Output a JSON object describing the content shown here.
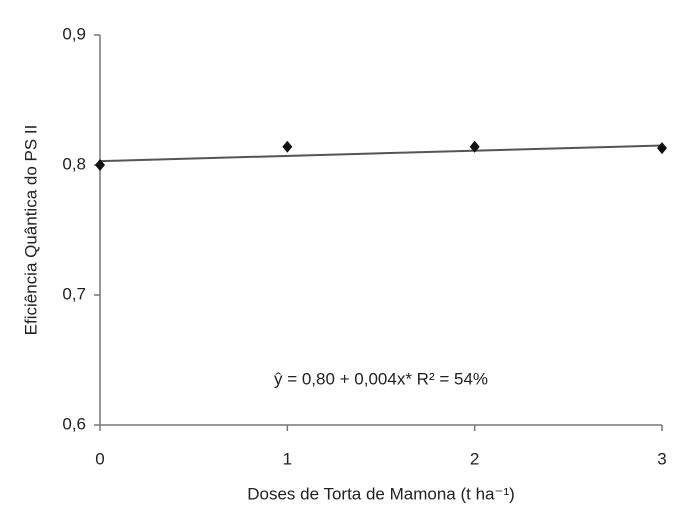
{
  "chart_data": {
    "type": "scatter",
    "x_label": "Doses de Torta de Mamona (t ha⁻¹)",
    "y_label": "Eficiência Quântica do PS II",
    "annotation": "ŷ = 0,80 + 0,004x* R² = 54%",
    "xlim": [
      0,
      3
    ],
    "xticks": [
      0,
      1,
      2,
      3
    ],
    "ylim": [
      0.6,
      0.9
    ],
    "yticks": [
      {
        "value": 0.6,
        "label": "0,6"
      },
      {
        "value": 0.7,
        "label": "0,7"
      },
      {
        "value": 0.8,
        "label": "0,8"
      },
      {
        "value": 0.9,
        "label": "0,9"
      }
    ],
    "grid": false,
    "series": [
      {
        "type": "scatter",
        "color": "#111111",
        "x": [
          0,
          1,
          2,
          3
        ],
        "values": [
          0.8,
          0.814,
          0.814,
          0.813
        ]
      },
      {
        "type": "line",
        "color": "#555555",
        "x": [
          0,
          3
        ],
        "values": [
          0.803,
          0.815
        ]
      }
    ]
  }
}
